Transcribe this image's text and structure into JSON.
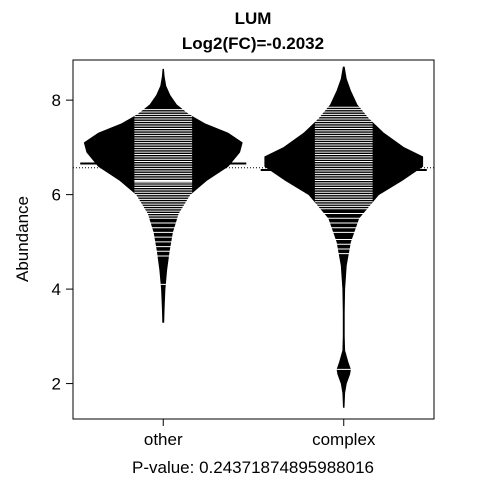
{
  "chart_data": {
    "type": "violin",
    "title": "LUM",
    "subtitle": "Log2(FC)=-0.2032",
    "ylabel": "Abundance",
    "xlabel": "P-value: 0.24371874895988016",
    "categories": [
      "other",
      "complex"
    ],
    "ylim": [
      1.25,
      8.85
    ],
    "yticks": [
      2,
      4,
      6,
      8
    ],
    "overall_mean": 6.57,
    "colors": {
      "fill": "#000000",
      "strip": "#ffffff",
      "background": "#ffffff"
    },
    "groups": [
      {
        "name": "other",
        "mean": 6.66,
        "density": [
          [
            3.3,
            0.005
          ],
          [
            3.6,
            0.01
          ],
          [
            4.0,
            0.02
          ],
          [
            4.4,
            0.04
          ],
          [
            4.8,
            0.07
          ],
          [
            5.2,
            0.11
          ],
          [
            5.6,
            0.18
          ],
          [
            6.0,
            0.32
          ],
          [
            6.3,
            0.52
          ],
          [
            6.6,
            0.78
          ],
          [
            6.9,
            0.92
          ],
          [
            7.1,
            0.95
          ],
          [
            7.3,
            0.78
          ],
          [
            7.5,
            0.5
          ],
          [
            7.7,
            0.3
          ],
          [
            7.9,
            0.16
          ],
          [
            8.1,
            0.08
          ],
          [
            8.3,
            0.03
          ],
          [
            8.5,
            0.01
          ],
          [
            8.65,
            0.003
          ]
        ],
        "points": [
          4.1,
          4.7,
          4.8,
          4.9,
          5.0,
          5.1,
          5.2,
          5.3,
          5.4,
          5.5,
          5.55,
          5.6,
          5.65,
          5.7,
          5.75,
          5.8,
          5.85,
          5.9,
          5.95,
          6.0,
          6.05,
          6.1,
          6.15,
          6.2,
          6.25,
          6.28,
          6.3,
          6.35,
          6.4,
          6.45,
          6.5,
          6.55,
          6.6,
          6.65,
          6.7,
          6.75,
          6.8,
          6.85,
          6.9,
          6.95,
          7.0,
          7.05,
          7.1,
          7.15,
          7.2,
          7.25,
          7.3,
          7.35,
          7.4,
          7.45,
          7.5,
          7.55,
          7.6,
          7.65,
          7.7,
          7.75,
          7.8
        ]
      },
      {
        "name": "complex",
        "mean": 6.52,
        "density": [
          [
            1.5,
            0.003
          ],
          [
            1.8,
            0.01
          ],
          [
            2.0,
            0.03
          ],
          [
            2.2,
            0.07
          ],
          [
            2.3,
            0.08
          ],
          [
            2.45,
            0.05
          ],
          [
            2.7,
            0.01
          ],
          [
            3.0,
            0.005
          ],
          [
            3.5,
            0.006
          ],
          [
            4.0,
            0.01
          ],
          [
            4.5,
            0.03
          ],
          [
            5.0,
            0.08
          ],
          [
            5.5,
            0.18
          ],
          [
            6.0,
            0.42
          ],
          [
            6.3,
            0.7
          ],
          [
            6.6,
            0.95
          ],
          [
            6.8,
            0.95
          ],
          [
            7.0,
            0.72
          ],
          [
            7.3,
            0.48
          ],
          [
            7.6,
            0.3
          ],
          [
            7.9,
            0.16
          ],
          [
            8.2,
            0.08
          ],
          [
            8.45,
            0.03
          ],
          [
            8.7,
            0.005
          ]
        ],
        "points": [
          2.3,
          4.75,
          4.85,
          4.95,
          5.05,
          5.2,
          5.3,
          5.4,
          5.5,
          5.6,
          5.7,
          5.75,
          5.8,
          5.85,
          5.9,
          5.95,
          6.0,
          6.05,
          6.1,
          6.15,
          6.2,
          6.25,
          6.3,
          6.35,
          6.4,
          6.45,
          6.5,
          6.55,
          6.6,
          6.65,
          6.7,
          6.75,
          6.8,
          6.85,
          6.9,
          6.95,
          7.0,
          7.05,
          7.1,
          7.15,
          7.2,
          7.25,
          7.3,
          7.35,
          7.4,
          7.45,
          7.5,
          7.55,
          7.6,
          7.65,
          7.7,
          7.75,
          7.8,
          7.85
        ]
      }
    ]
  }
}
